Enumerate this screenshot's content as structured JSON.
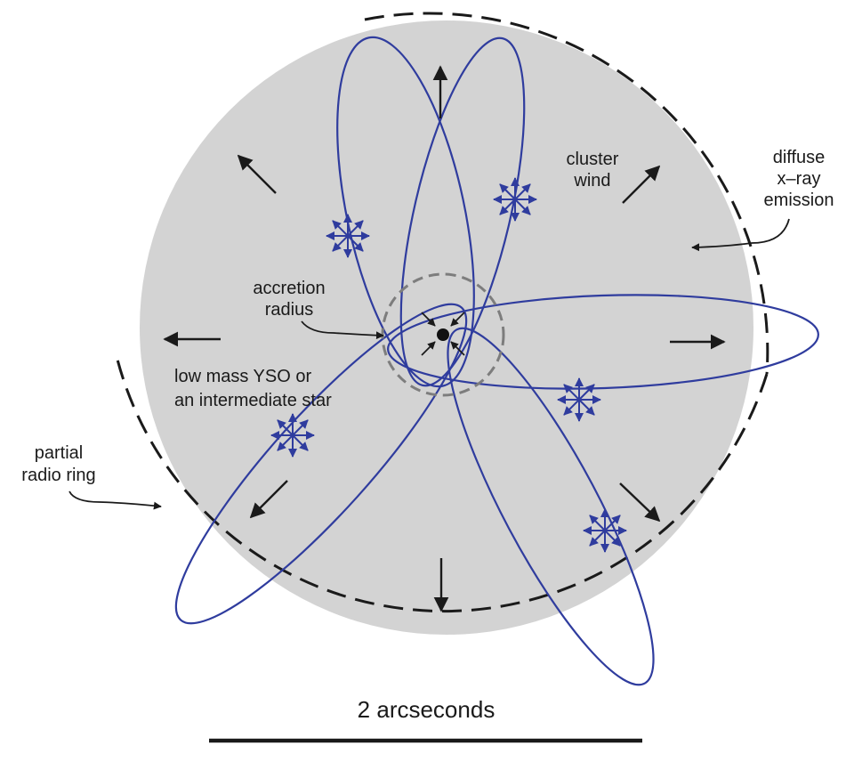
{
  "labels": {
    "cluster_wind": [
      "cluster",
      "wind"
    ],
    "diffuse": [
      "diffuse",
      "x–ray",
      "emission"
    ],
    "accretion": [
      "accretion",
      "radius"
    ],
    "yso": [
      "low mass YSO or",
      "an intermediate star"
    ],
    "radio_ring": [
      "partial",
      "radio ring"
    ],
    "scale_bar": "2 arcseconds"
  },
  "colors": {
    "emission_disk": "#d3d3d3",
    "orbit": "#2f3c9e",
    "ink": "#1a1a1a",
    "accretion_circle": "#7d7d7d"
  },
  "icons": {
    "central_object": "filled-dot",
    "star_wind": "eight-arrow-burst-icon",
    "outflow": "arrow-icon"
  }
}
